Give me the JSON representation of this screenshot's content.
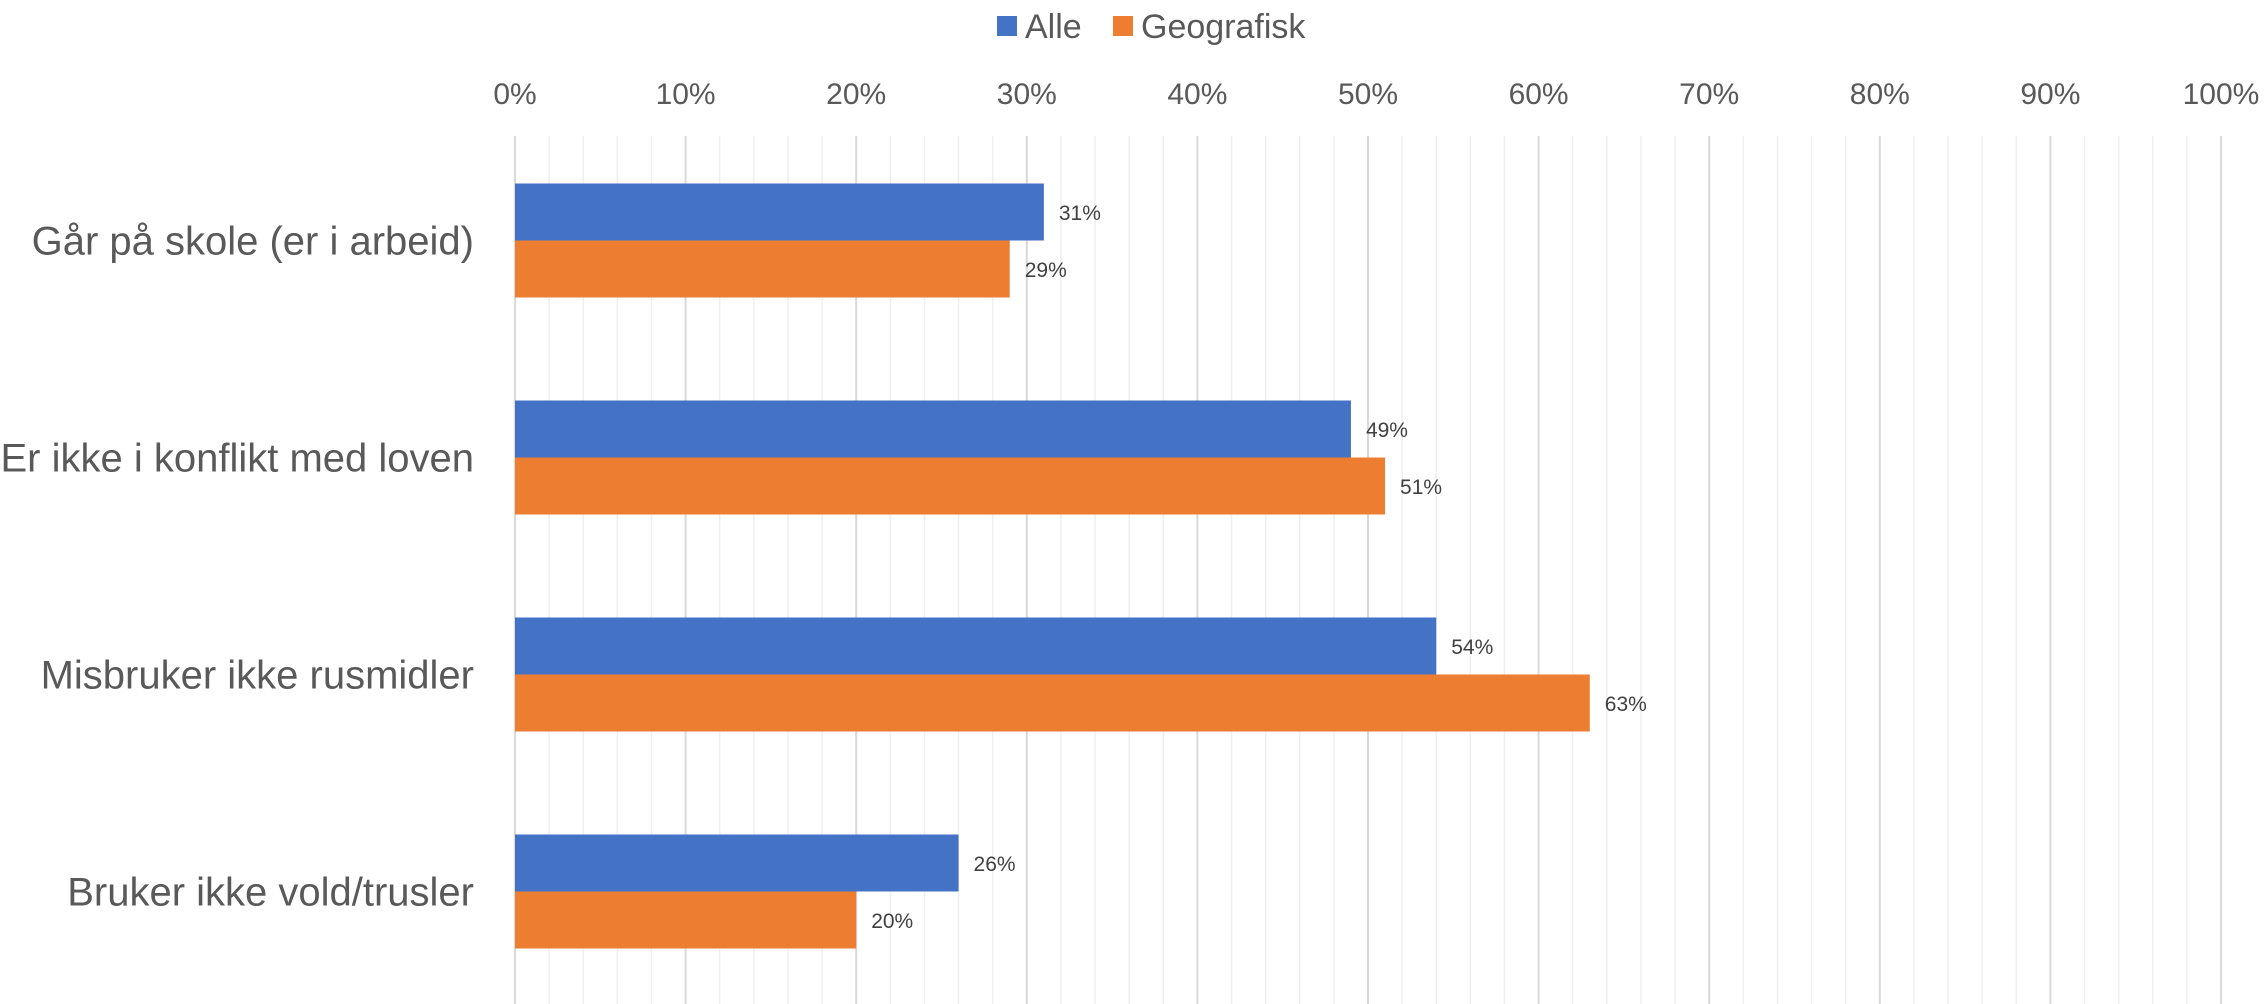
{
  "chart_data": {
    "type": "bar",
    "orientation": "horizontal",
    "categories": [
      "Går på skole (er i arbeid)",
      "Er ikke i konflikt med loven",
      "Misbruker ikke rusmidler",
      "Bruker ikke vold/trusler"
    ],
    "series": [
      {
        "name": "Alle",
        "color": "#4472C4",
        "values": [
          31,
          49,
          54,
          26
        ],
        "labels": [
          "31%",
          "49%",
          "54%",
          "26%"
        ]
      },
      {
        "name": "Geografisk",
        "color": "#ED7D31",
        "values": [
          29,
          51,
          63,
          20
        ],
        "labels": [
          "29%",
          "51%",
          "63%",
          "20%"
        ]
      }
    ],
    "xlim": [
      0,
      100
    ],
    "ticks": [
      "0%",
      "10%",
      "20%",
      "30%",
      "40%",
      "50%",
      "60%",
      "70%",
      "80%",
      "90%",
      "100%"
    ],
    "axis_position": "top",
    "legend_position": "top",
    "grid": true
  }
}
